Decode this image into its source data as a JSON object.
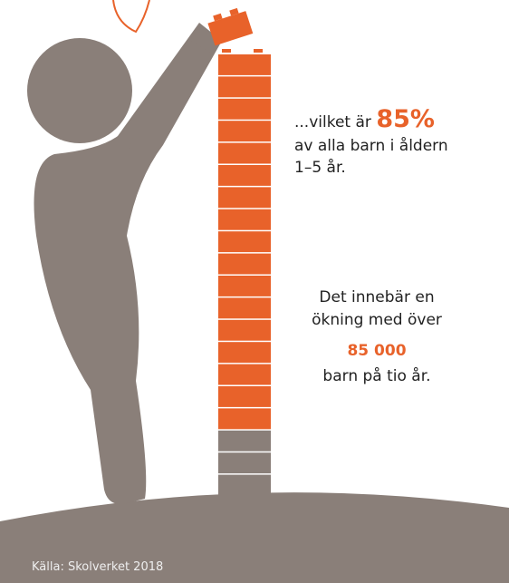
{
  "stat1": {
    "lead": "...vilket är",
    "highlight": "85%",
    "line2": "av alla barn i åldern",
    "line3": "1–5 år."
  },
  "stat2": {
    "line1": "Det innebär en",
    "line2": "ökning med över",
    "highlight": "85 000",
    "line3": "barn på tio år."
  },
  "source": "Källa: Skolverket 2018"
}
